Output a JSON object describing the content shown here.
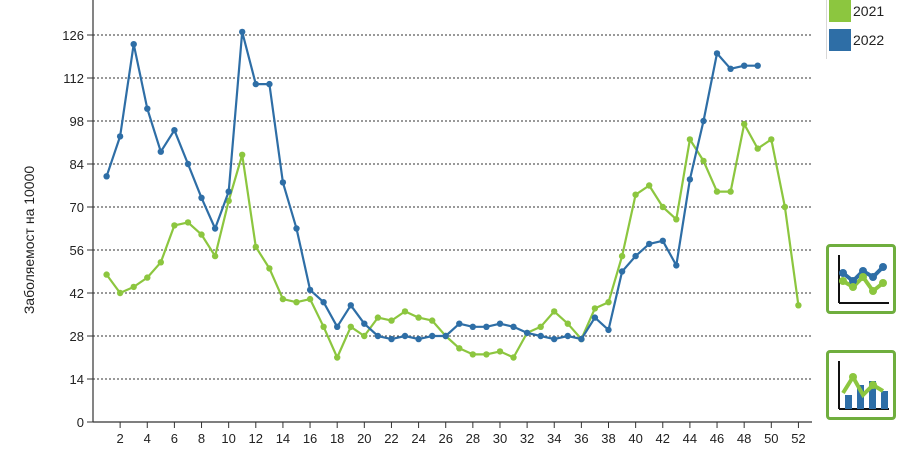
{
  "chart_data": {
    "type": "line",
    "ylabel": "Заболяемост на 10000",
    "xlabel": "",
    "ylim": [
      0,
      140
    ],
    "yticks": [
      0,
      14,
      28,
      42,
      56,
      70,
      84,
      98,
      112,
      126
    ],
    "xticks": [
      2,
      4,
      6,
      8,
      10,
      12,
      14,
      16,
      18,
      20,
      22,
      24,
      26,
      28,
      30,
      32,
      34,
      36,
      38,
      40,
      42,
      44,
      46,
      48,
      50,
      52
    ],
    "grid": true,
    "legend_position": "top-right",
    "series": [
      {
        "name": "2021",
        "color": "#8cc63f",
        "x": [
          1,
          2,
          3,
          4,
          5,
          6,
          7,
          8,
          9,
          10,
          11,
          12,
          13,
          14,
          15,
          16,
          17,
          18,
          19,
          20,
          21,
          22,
          23,
          24,
          25,
          26,
          27,
          28,
          29,
          30,
          31,
          32,
          33,
          34,
          35,
          36,
          37,
          38,
          39,
          40,
          41,
          42,
          43,
          44,
          45,
          46,
          47,
          48,
          49,
          50,
          51,
          52
        ],
        "values": [
          48,
          42,
          44,
          47,
          52,
          64,
          65,
          61,
          54,
          72,
          87,
          57,
          50,
          40,
          39,
          40,
          31,
          21,
          31,
          28,
          34,
          33,
          36,
          34,
          33,
          28,
          24,
          22,
          22,
          23,
          21,
          29,
          31,
          36,
          32,
          27,
          37,
          39,
          54,
          74,
          77,
          70,
          66,
          92,
          85,
          75,
          75,
          97,
          89,
          92,
          70,
          38
        ]
      },
      {
        "name": "2022",
        "color": "#2e6ea6",
        "x": [
          1,
          2,
          3,
          4,
          5,
          6,
          7,
          8,
          9,
          10,
          11,
          12,
          13,
          14,
          15,
          16,
          17,
          18,
          19,
          20,
          21,
          22,
          23,
          24,
          25,
          26,
          27,
          28,
          29,
          30,
          31,
          32,
          33,
          34,
          35,
          36,
          37,
          38,
          39,
          40,
          41,
          42,
          43,
          44,
          45,
          46,
          47,
          48,
          49
        ],
        "values": [
          80,
          93,
          123,
          102,
          88,
          95,
          84,
          73,
          63,
          75,
          127,
          110,
          110,
          78,
          63,
          43,
          39,
          31,
          38,
          32,
          28,
          27,
          28,
          27,
          28,
          28,
          32,
          31,
          31,
          32,
          31,
          29,
          28,
          27,
          28,
          27,
          34,
          30,
          49,
          54,
          58,
          59,
          51,
          79,
          98,
          120,
          115,
          116,
          116
        ]
      }
    ]
  },
  "legend": {
    "items": [
      {
        "label": "2021",
        "color": "#8cc63f"
      },
      {
        "label": "2022",
        "color": "#2e6ea6"
      }
    ]
  },
  "controls": {
    "line_chart_icon": "line-chart-icon",
    "combo_chart_icon": "bar-line-chart-icon"
  }
}
